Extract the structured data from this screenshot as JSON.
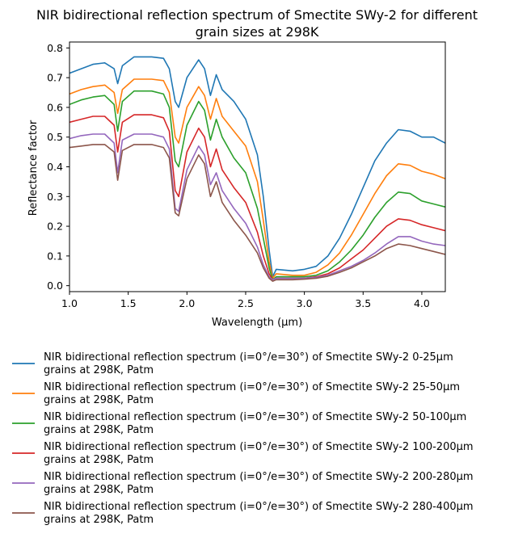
{
  "chart_data": {
    "type": "line",
    "title": [
      "NIR bidirectional reflection spectrum of Smectite SWy-2 for different",
      "grain sizes at 298K"
    ],
    "xlabel": "Wavelength (μm)",
    "ylabel": "Reflectance factor",
    "xlim": [
      1.0,
      4.2
    ],
    "ylim": [
      -0.02,
      0.82
    ],
    "xticks": [
      1.0,
      1.5,
      2.0,
      2.5,
      3.0,
      3.5,
      4.0
    ],
    "xtick_labels": [
      "1.0",
      "1.5",
      "2.0",
      "2.5",
      "3.0",
      "3.5",
      "4.0"
    ],
    "yticks": [
      0.0,
      0.1,
      0.2,
      0.3,
      0.4,
      0.5,
      0.6,
      0.7,
      0.8
    ],
    "ytick_labels": [
      "0.0",
      "0.1",
      "0.2",
      "0.3",
      "0.4",
      "0.5",
      "0.6",
      "0.7",
      "0.8"
    ],
    "grid": false,
    "legend_placement": "below",
    "x": [
      1.0,
      1.1,
      1.2,
      1.3,
      1.38,
      1.41,
      1.45,
      1.55,
      1.7,
      1.8,
      1.85,
      1.9,
      1.93,
      2.0,
      2.1,
      2.15,
      2.2,
      2.25,
      2.3,
      2.4,
      2.5,
      2.6,
      2.65,
      2.7,
      2.73,
      2.76,
      2.9,
      3.0,
      3.1,
      3.2,
      3.3,
      3.4,
      3.5,
      3.6,
      3.7,
      3.8,
      3.9,
      4.0,
      4.1,
      4.2
    ],
    "series": [
      {
        "name": "NIR bidirectional reflection spectrum (i=0°/e=30°) of Smectite SWy-2 0-25µm",
        "name_line2": "grains at 298K, Patm",
        "color": "#1f77b4",
        "values": [
          0.715,
          0.73,
          0.745,
          0.75,
          0.73,
          0.68,
          0.74,
          0.77,
          0.77,
          0.765,
          0.73,
          0.62,
          0.6,
          0.7,
          0.76,
          0.73,
          0.64,
          0.71,
          0.66,
          0.62,
          0.56,
          0.44,
          0.3,
          0.12,
          0.03,
          0.055,
          0.05,
          0.055,
          0.065,
          0.1,
          0.16,
          0.24,
          0.33,
          0.42,
          0.48,
          0.525,
          0.52,
          0.5,
          0.5,
          0.48
        ]
      },
      {
        "name": "NIR bidirectional reflection spectrum (i=0°/e=30°) of Smectite SWy-2 25-50µm",
        "name_line2": "grains at 298K, Patm",
        "color": "#ff7f0e",
        "values": [
          0.645,
          0.66,
          0.67,
          0.675,
          0.65,
          0.58,
          0.66,
          0.695,
          0.695,
          0.69,
          0.65,
          0.5,
          0.48,
          0.6,
          0.67,
          0.64,
          0.56,
          0.63,
          0.57,
          0.52,
          0.47,
          0.35,
          0.22,
          0.08,
          0.025,
          0.04,
          0.035,
          0.035,
          0.045,
          0.07,
          0.11,
          0.17,
          0.24,
          0.31,
          0.37,
          0.41,
          0.405,
          0.385,
          0.375,
          0.36
        ]
      },
      {
        "name": "NIR bidirectional reflection spectrum (i=0°/e=30°) of Smectite SWy-2 50-100µm",
        "name_line2": "grains at 298K, Patm",
        "color": "#2ca02c",
        "values": [
          0.61,
          0.625,
          0.635,
          0.64,
          0.61,
          0.52,
          0.62,
          0.655,
          0.655,
          0.645,
          0.6,
          0.42,
          0.4,
          0.54,
          0.62,
          0.59,
          0.49,
          0.56,
          0.5,
          0.43,
          0.38,
          0.26,
          0.16,
          0.06,
          0.02,
          0.03,
          0.03,
          0.03,
          0.035,
          0.05,
          0.08,
          0.12,
          0.17,
          0.23,
          0.28,
          0.315,
          0.31,
          0.285,
          0.275,
          0.265
        ]
      },
      {
        "name": "NIR bidirectional reflection spectrum (i=0°/e=30°) of Smectite SWy-2 100-200µm",
        "name_line2": "grains at 298K, Patm",
        "color": "#d62728",
        "values": [
          0.55,
          0.56,
          0.57,
          0.57,
          0.54,
          0.45,
          0.55,
          0.575,
          0.575,
          0.565,
          0.52,
          0.32,
          0.3,
          0.45,
          0.53,
          0.5,
          0.4,
          0.46,
          0.39,
          0.33,
          0.28,
          0.18,
          0.1,
          0.04,
          0.02,
          0.025,
          0.025,
          0.025,
          0.03,
          0.04,
          0.06,
          0.09,
          0.12,
          0.16,
          0.2,
          0.225,
          0.22,
          0.205,
          0.195,
          0.185
        ]
      },
      {
        "name": "NIR bidirectional reflection spectrum (i=0°/e=30°) of Smectite SWy-2 200-280µm",
        "name_line2": "grains at 298K, Patm",
        "color": "#9467bd",
        "values": [
          0.495,
          0.505,
          0.51,
          0.51,
          0.48,
          0.38,
          0.49,
          0.51,
          0.51,
          0.5,
          0.46,
          0.26,
          0.25,
          0.39,
          0.47,
          0.44,
          0.34,
          0.38,
          0.32,
          0.26,
          0.21,
          0.13,
          0.07,
          0.03,
          0.02,
          0.025,
          0.025,
          0.025,
          0.028,
          0.035,
          0.05,
          0.065,
          0.085,
          0.11,
          0.14,
          0.165,
          0.165,
          0.15,
          0.14,
          0.135
        ]
      },
      {
        "name": "NIR bidirectional reflection spectrum (i=0°/e=30°) of Smectite SWy-2 280-400µm",
        "name_line2": "grains at 298K, Patm",
        "color": "#8c564b",
        "values": [
          0.465,
          0.47,
          0.475,
          0.475,
          0.45,
          0.355,
          0.455,
          0.475,
          0.475,
          0.465,
          0.43,
          0.245,
          0.235,
          0.36,
          0.44,
          0.41,
          0.3,
          0.35,
          0.28,
          0.22,
          0.17,
          0.11,
          0.06,
          0.025,
          0.015,
          0.02,
          0.02,
          0.022,
          0.025,
          0.032,
          0.045,
          0.06,
          0.08,
          0.1,
          0.125,
          0.14,
          0.135,
          0.125,
          0.115,
          0.105
        ]
      }
    ]
  }
}
